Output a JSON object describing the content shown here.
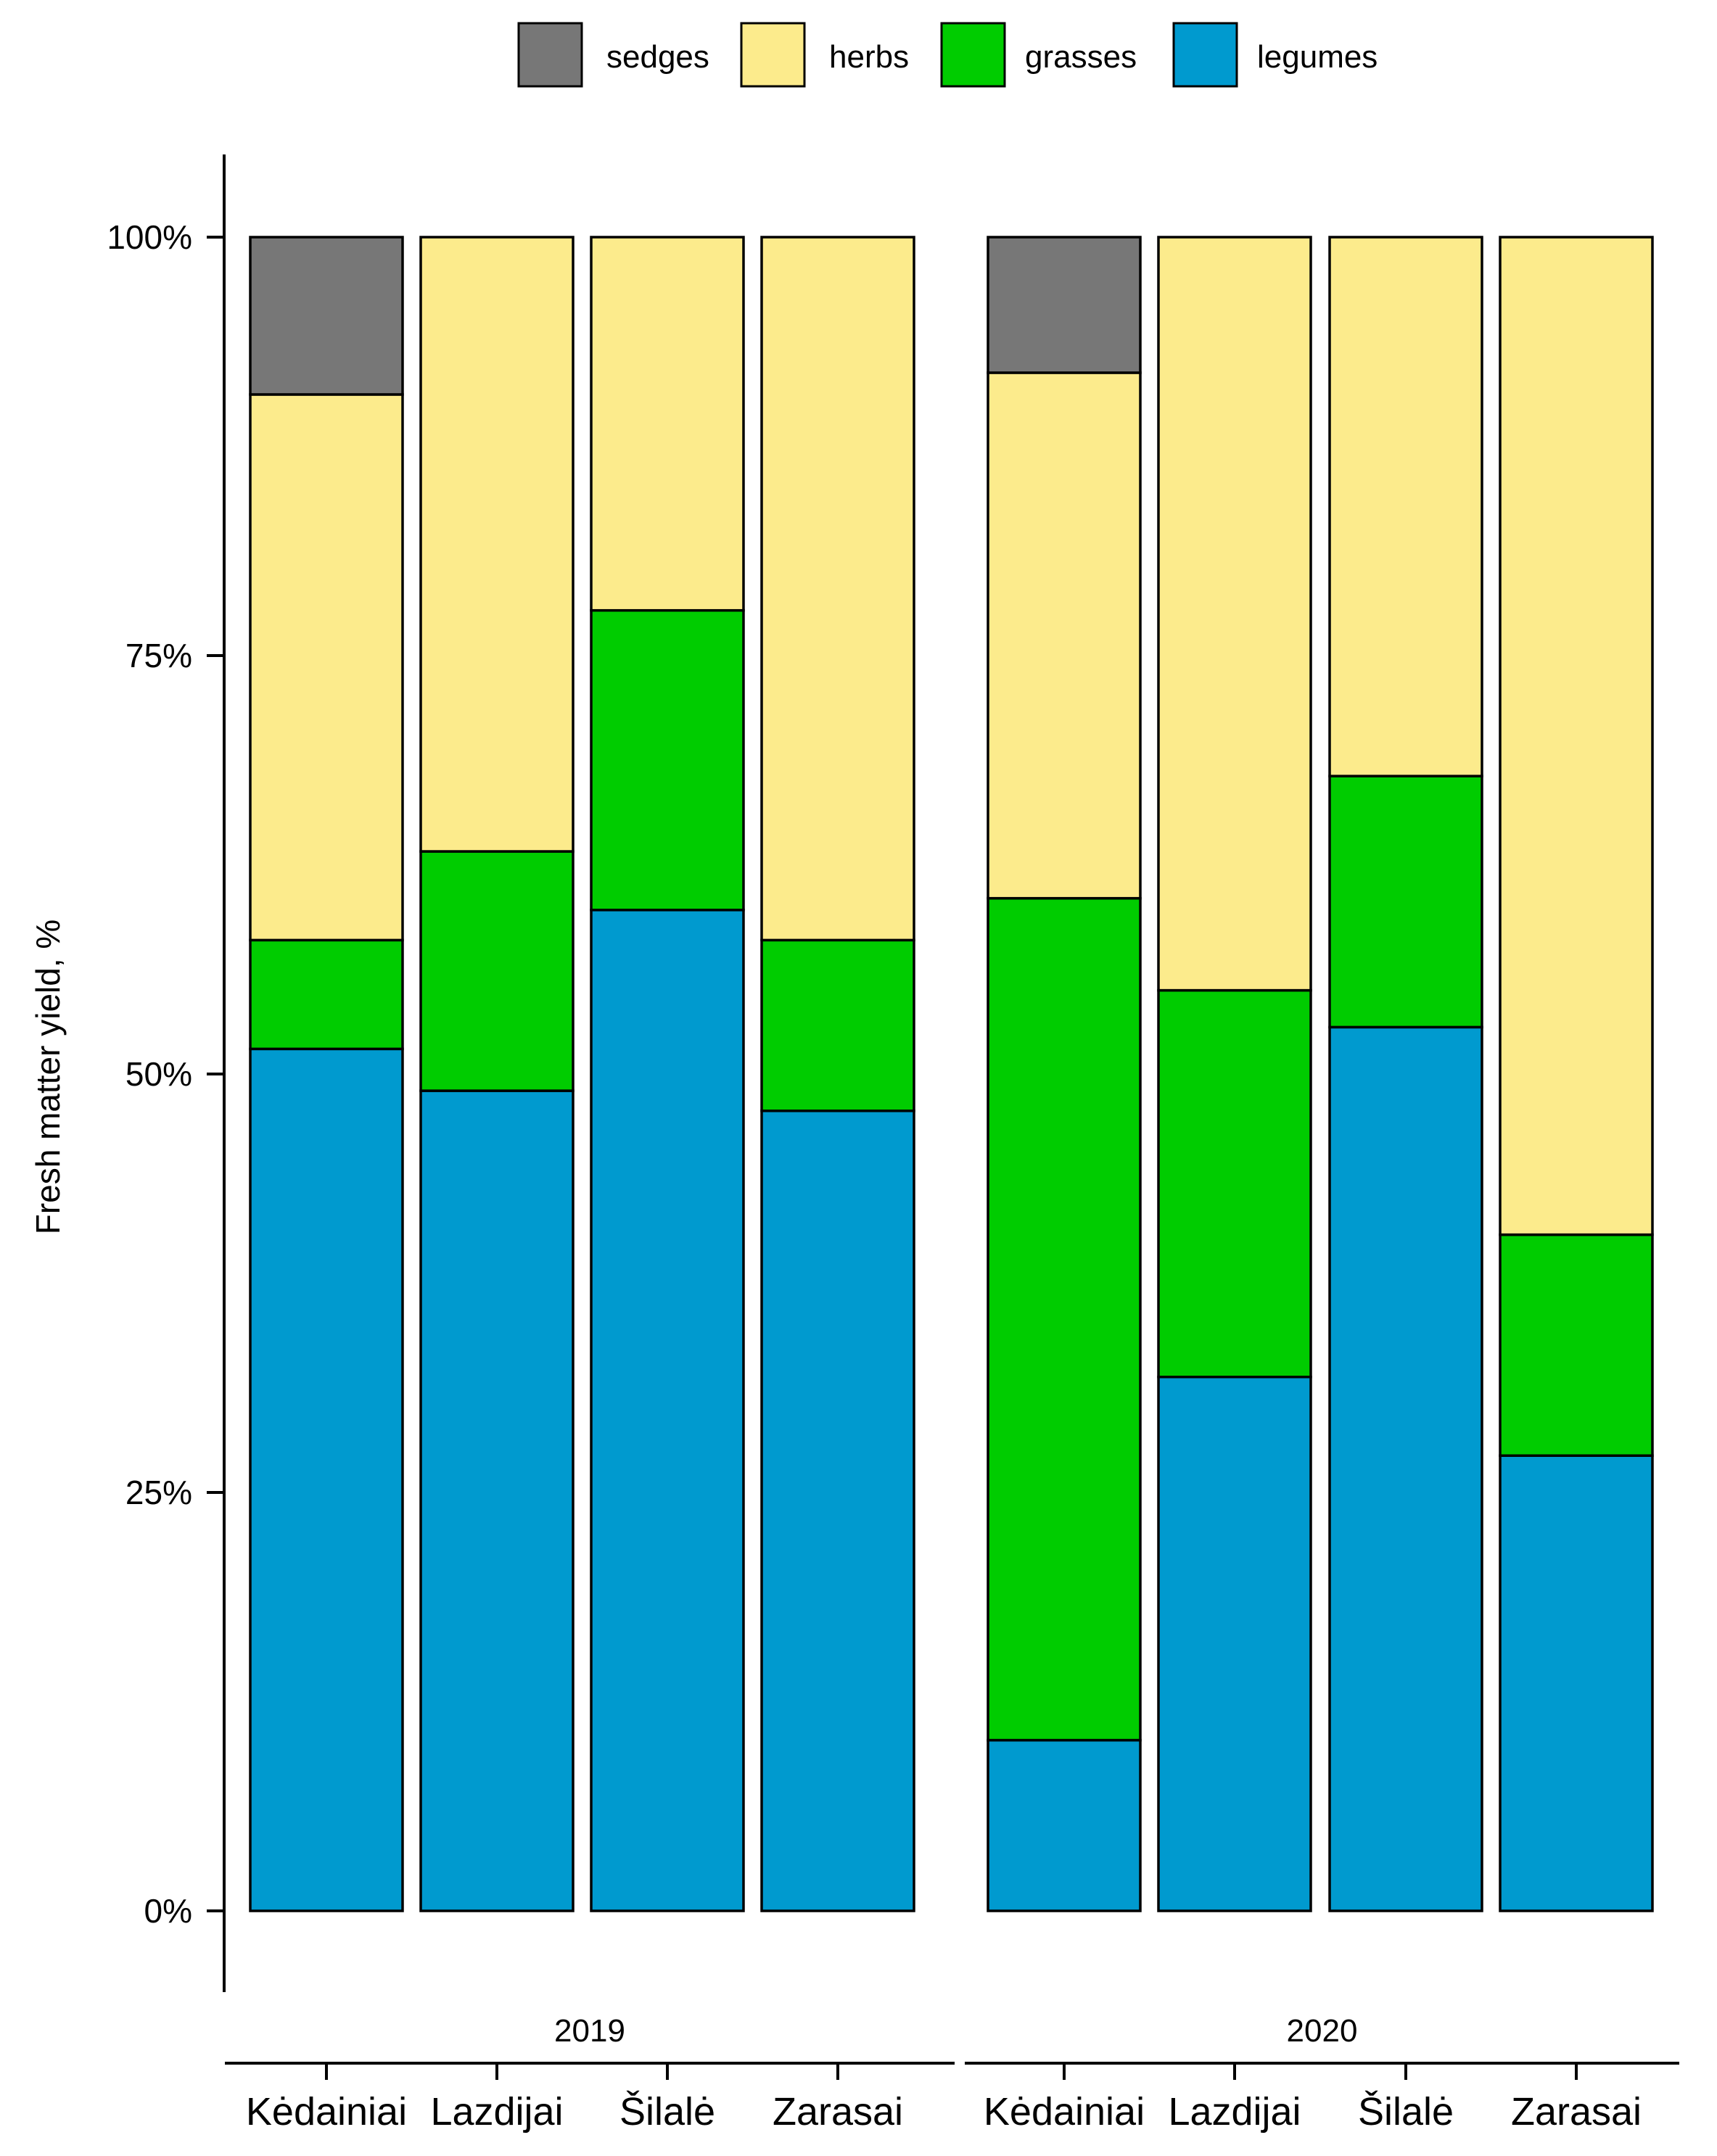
{
  "chart_data": {
    "type": "bar",
    "stacked": true,
    "normalized": true,
    "ylabel": "Fresh matter yield, %",
    "ylim": [
      0,
      1
    ],
    "ytick_labels": [
      "0%",
      "25%",
      "50%",
      "75%",
      "100%"
    ],
    "legend_position": "top",
    "legend": [
      {
        "name": "sedges",
        "color": "#777777"
      },
      {
        "name": "herbs",
        "color": "#FCEB8C"
      },
      {
        "name": "grasses",
        "color": "#00CC00"
      },
      {
        "name": "legumes",
        "color": "#009ACF"
      }
    ],
    "panels": [
      {
        "label": "2019",
        "categories": [
          "Kėdainiai",
          "Lazdijai",
          "Šilalė",
          "Zarasai"
        ],
        "series": [
          {
            "name": "legumes",
            "values": [
              51.5,
              49.0,
              59.8,
              47.8
            ]
          },
          {
            "name": "grasses",
            "values": [
              6.5,
              14.3,
              17.9,
              10.2
            ]
          },
          {
            "name": "herbs",
            "values": [
              32.6,
              36.7,
              22.3,
              42.0
            ]
          },
          {
            "name": "sedges",
            "values": [
              9.4,
              0,
              0,
              0
            ]
          }
        ]
      },
      {
        "label": "2020",
        "categories": [
          "Kėdainiai",
          "Lazdijai",
          "Šilalė",
          "Zarasai"
        ],
        "series": [
          {
            "name": "legumes",
            "values": [
              10.2,
              31.9,
              52.8,
              27.2
            ]
          },
          {
            "name": "grasses",
            "values": [
              50.3,
              23.1,
              15.0,
              13.2
            ]
          },
          {
            "name": "herbs",
            "values": [
              31.4,
              45.0,
              32.2,
              59.6
            ]
          },
          {
            "name": "sedges",
            "values": [
              8.1,
              0,
              0,
              0
            ]
          }
        ]
      }
    ]
  }
}
